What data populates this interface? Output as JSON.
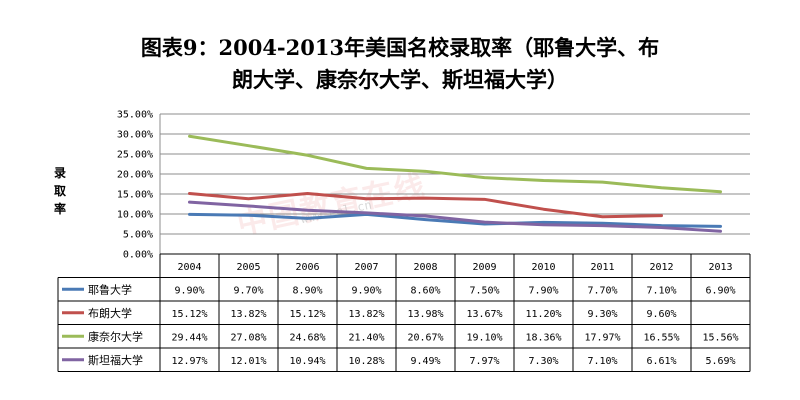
{
  "chart_data": {
    "type": "line",
    "title": "图表9：2004-2013年美国名校录取率（耶鲁大学、布朗大学、康奈尔大学、斯坦福大学）",
    "title_lines": [
      "图表9：2004-2013年美国名校录取率（耶鲁大学、布",
      "朗大学、康奈尔大学、斯坦福大学）"
    ],
    "ylabel_chars": [
      "录",
      "取",
      "率"
    ],
    "xlabel": "",
    "ylim": [
      0,
      35
    ],
    "y_ticks": [
      "0.00%",
      "5.00%",
      "10.00%",
      "15.00%",
      "20.00%",
      "25.00%",
      "30.00%",
      "35.00%"
    ],
    "categories": [
      "2004",
      "2005",
      "2006",
      "2007",
      "2008",
      "2009",
      "2010",
      "2011",
      "2012",
      "2013"
    ],
    "grid": true,
    "legend": "left table (data table)",
    "series": [
      {
        "name": "耶鲁大学",
        "color": "#4a7ab5",
        "values": [
          9.9,
          9.7,
          8.9,
          9.9,
          8.6,
          7.5,
          7.9,
          7.7,
          7.1,
          6.9
        ],
        "labels": [
          "9.90%",
          "9.70%",
          "8.90%",
          "9.90%",
          "8.60%",
          "7.50%",
          "7.90%",
          "7.70%",
          "7.10%",
          "6.90%"
        ]
      },
      {
        "name": "布朗大学",
        "color": "#c0504d",
        "values": [
          15.12,
          13.82,
          15.12,
          13.82,
          13.98,
          13.67,
          11.2,
          9.3,
          9.6,
          null
        ],
        "labels": [
          "15.12%",
          "13.82%",
          "15.12%",
          "13.82%",
          "13.98%",
          "13.67%",
          "11.20%",
          "9.30%",
          "9.60%",
          ""
        ]
      },
      {
        "name": "康奈尔大学",
        "color": "#9bbb59",
        "values": [
          29.44,
          27.08,
          24.68,
          21.4,
          20.67,
          19.1,
          18.36,
          17.97,
          16.55,
          15.56
        ],
        "labels": [
          "29.44%",
          "27.08%",
          "24.68%",
          "21.40%",
          "20.67%",
          "19.10%",
          "18.36%",
          "17.97%",
          "16.55%",
          "15.56%"
        ]
      },
      {
        "name": "斯坦福大学",
        "color": "#8064a2",
        "values": [
          12.97,
          12.01,
          10.94,
          10.28,
          9.49,
          7.97,
          7.3,
          7.1,
          6.61,
          5.69
        ],
        "labels": [
          "12.97%",
          "12.01%",
          "10.94%",
          "10.28%",
          "9.49%",
          "7.97%",
          "7.30%",
          "7.10%",
          "6.61%",
          "5.69%"
        ]
      }
    ]
  },
  "watermark": {
    "text": "中国教育在线",
    "url": "www.eol.cn"
  }
}
